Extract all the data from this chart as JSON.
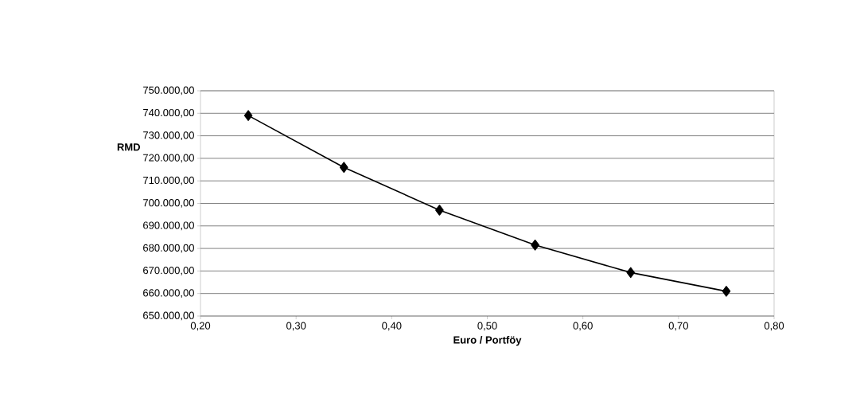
{
  "chart_data": {
    "type": "line",
    "xlabel": "Euro / Portföy",
    "ylabel": "RMD",
    "x": [
      0.25,
      0.35,
      0.45,
      0.55,
      0.65,
      0.75
    ],
    "series": [
      {
        "color": "#000000",
        "values": [
          739000,
          716000,
          697000,
          681500,
          669300,
          661000
        ]
      }
    ],
    "xlim": [
      0.2,
      0.8
    ],
    "ylim": [
      650000,
      750000
    ],
    "xticks": [
      {
        "value": 0.2,
        "label": "0,20"
      },
      {
        "value": 0.3,
        "label": "0,30"
      },
      {
        "value": 0.4,
        "label": "0,40"
      },
      {
        "value": 0.5,
        "label": "0,50"
      },
      {
        "value": 0.6,
        "label": "0,60"
      },
      {
        "value": 0.7,
        "label": "0,70"
      },
      {
        "value": 0.8,
        "label": "0,80"
      }
    ],
    "yticks": [
      {
        "value": 650000,
        "label": "650.000,00"
      },
      {
        "value": 660000,
        "label": "660.000,00"
      },
      {
        "value": 670000,
        "label": "670.000,00"
      },
      {
        "value": 680000,
        "label": "680.000,00"
      },
      {
        "value": 690000,
        "label": "690.000,00"
      },
      {
        "value": 700000,
        "label": "700.000,00"
      },
      {
        "value": 710000,
        "label": "710.000,00"
      },
      {
        "value": 720000,
        "label": "720.000,00"
      },
      {
        "value": 730000,
        "label": "730.000,00"
      },
      {
        "value": 740000,
        "label": "740.000,00"
      },
      {
        "value": 750000,
        "label": "750.000,00"
      }
    ],
    "grid": "y",
    "marker": "diamond",
    "line_style": "solid"
  }
}
